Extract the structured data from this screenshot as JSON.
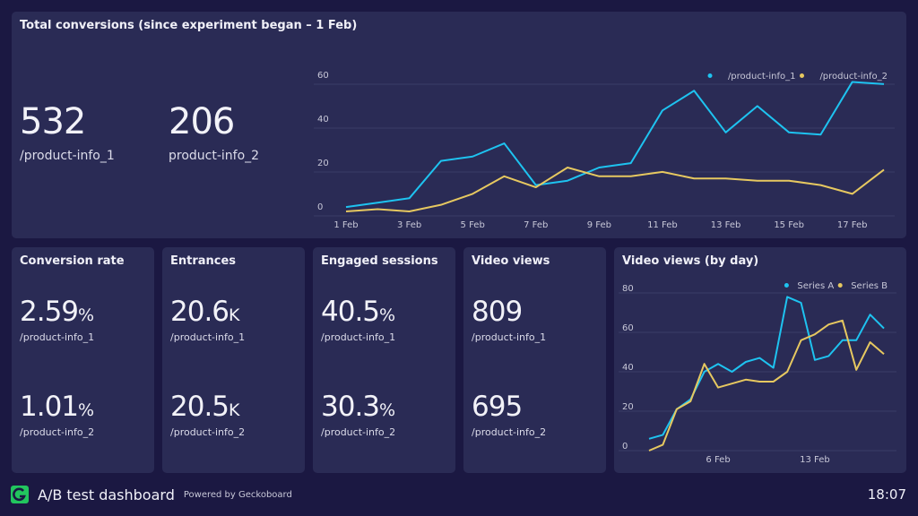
{
  "colors": {
    "background": "#1b1842",
    "panel": "#2a2b55",
    "series_1": "#1ec3f0",
    "series_2": "#e6c860",
    "logo": "#22c55e"
  },
  "top": {
    "title": "Total conversions (since experiment began – 1 Feb)",
    "kpis": [
      {
        "value": "532",
        "label": "/product-info_1"
      },
      {
        "value": "206",
        "label": "product-info_2"
      }
    ]
  },
  "metrics": [
    {
      "title": "Conversion rate",
      "rows": [
        {
          "value": "2.59",
          "unit": "%",
          "label": "/product-info_1"
        },
        {
          "value": "1.01",
          "unit": "%",
          "label": "/product-info_2"
        }
      ]
    },
    {
      "title": "Entrances",
      "rows": [
        {
          "value": "20.6",
          "unit": "K",
          "label": "/product-info_1"
        },
        {
          "value": "20.5",
          "unit": "K",
          "label": "/product-info_2"
        }
      ]
    },
    {
      "title": "Engaged sessions",
      "rows": [
        {
          "value": "40.5",
          "unit": "%",
          "label": "/product-info_1"
        },
        {
          "value": "30.3",
          "unit": "%",
          "label": "/product-info_2"
        }
      ]
    },
    {
      "title": "Video views",
      "rows": [
        {
          "value": "809",
          "unit": "",
          "label": "/product-info_1"
        },
        {
          "value": "695",
          "unit": "",
          "label": "/product-info_2"
        }
      ]
    }
  ],
  "video_chart": {
    "title": "Video views (by day)"
  },
  "footer": {
    "title": "A/B test dashboard",
    "powered": "Powered by Geckoboard",
    "time": "18:07",
    "logo_icon": "geckoboard-logo-icon"
  },
  "chart_data": [
    {
      "type": "line",
      "x": [
        "1 Feb",
        "2 Feb",
        "3 Feb",
        "4 Feb",
        "5 Feb",
        "6 Feb",
        "7 Feb",
        "8 Feb",
        "9 Feb",
        "10 Feb",
        "11 Feb",
        "12 Feb",
        "13 Feb",
        "14 Feb",
        "15 Feb",
        "16 Feb",
        "17 Feb",
        "18 Feb"
      ],
      "xticks": [
        "1 Feb",
        "3 Feb",
        "5 Feb",
        "7 Feb",
        "9 Feb",
        "11 Feb",
        "13 Feb",
        "15 Feb",
        "17 Feb"
      ],
      "yticks": [
        "0",
        "20",
        "40",
        "60"
      ],
      "ylim": [
        0,
        60
      ],
      "grid": true,
      "legend": "top-right",
      "series": [
        {
          "name": "/product-info_1",
          "color": "#1ec3f0",
          "values": [
            2,
            4,
            6,
            23,
            25,
            31,
            12,
            14,
            20,
            22,
            46,
            55,
            36,
            48,
            36,
            35,
            59,
            58
          ]
        },
        {
          "name": "/product-info_2",
          "color": "#e6c860",
          "values": [
            0,
            1,
            0,
            3,
            8,
            16,
            11,
            20,
            16,
            16,
            18,
            15,
            15,
            14,
            14,
            12,
            8,
            19
          ]
        }
      ]
    },
    {
      "type": "line",
      "title": "Video views (by day)",
      "x": [
        "1 Feb",
        "2 Feb",
        "3 Feb",
        "4 Feb",
        "5 Feb",
        "6 Feb",
        "7 Feb",
        "8 Feb",
        "9 Feb",
        "10 Feb",
        "11 Feb",
        "12 Feb",
        "13 Feb",
        "14 Feb",
        "15 Feb",
        "16 Feb",
        "17 Feb",
        "18 Feb"
      ],
      "xticks": [
        "6 Feb",
        "13 Feb"
      ],
      "yticks": [
        "0",
        "20",
        "40",
        "60",
        "80"
      ],
      "ylim": [
        0,
        80
      ],
      "grid": true,
      "legend": "top-right",
      "series": [
        {
          "name": "Series A",
          "color": "#1ec3f0",
          "values": [
            6,
            8,
            21,
            26,
            40,
            44,
            40,
            45,
            47,
            42,
            78,
            75,
            46,
            48,
            56,
            56,
            69,
            62
          ]
        },
        {
          "name": "Series B",
          "color": "#e6c860",
          "values": [
            0,
            3,
            21,
            25,
            44,
            32,
            34,
            36,
            35,
            35,
            40,
            56,
            59,
            64,
            66,
            41,
            55,
            49
          ]
        }
      ]
    }
  ]
}
